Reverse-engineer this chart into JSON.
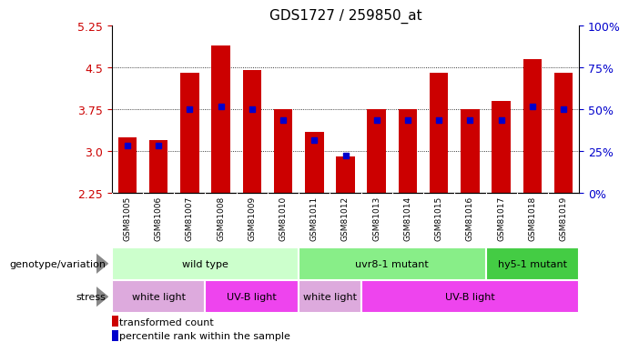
{
  "title": "GDS1727 / 259850_at",
  "samples": [
    "GSM81005",
    "GSM81006",
    "GSM81007",
    "GSM81008",
    "GSM81009",
    "GSM81010",
    "GSM81011",
    "GSM81012",
    "GSM81013",
    "GSM81014",
    "GSM81015",
    "GSM81016",
    "GSM81017",
    "GSM81018",
    "GSM81019"
  ],
  "red_values": [
    3.25,
    3.2,
    4.4,
    4.9,
    4.45,
    3.75,
    3.35,
    2.9,
    3.75,
    3.75,
    4.4,
    3.75,
    3.9,
    4.65,
    4.4
  ],
  "blue_values": [
    3.1,
    3.1,
    3.75,
    3.8,
    3.75,
    3.55,
    3.2,
    2.92,
    3.55,
    3.55,
    3.55,
    3.55,
    3.55,
    3.8,
    3.75
  ],
  "y_min": 2.25,
  "y_max": 5.25,
  "y_ticks": [
    2.25,
    3.0,
    3.75,
    4.5,
    5.25
  ],
  "y_right_ticks": [
    0,
    25,
    50,
    75,
    100
  ],
  "grid_lines": [
    3.0,
    3.75,
    4.5
  ],
  "bar_color": "#cc0000",
  "blue_color": "#0000cc",
  "bar_bottom": 2.25,
  "bar_width": 0.6,
  "genotype_groups": [
    {
      "label": "wild type",
      "start": 0,
      "end": 6,
      "color": "#ccffcc"
    },
    {
      "label": "uvr8-1 mutant",
      "start": 6,
      "end": 12,
      "color": "#88ee88"
    },
    {
      "label": "hy5-1 mutant",
      "start": 12,
      "end": 15,
      "color": "#44cc44"
    }
  ],
  "stress_groups": [
    {
      "label": "white light",
      "start": 0,
      "end": 3,
      "color": "#ddaadd"
    },
    {
      "label": "UV-B light",
      "start": 3,
      "end": 6,
      "color": "#ee44ee"
    },
    {
      "label": "white light",
      "start": 6,
      "end": 8,
      "color": "#ddaadd"
    },
    {
      "label": "UV-B light",
      "start": 8,
      "end": 15,
      "color": "#ee44ee"
    }
  ],
  "legend_red_label": "transformed count",
  "legend_blue_label": "percentile rank within the sample",
  "genotype_label": "genotype/variation",
  "stress_label": "stress",
  "title_fontsize": 11,
  "axis_color_red": "#cc0000",
  "axis_color_blue": "#0000cc",
  "xtick_bg_color": "#cccccc"
}
